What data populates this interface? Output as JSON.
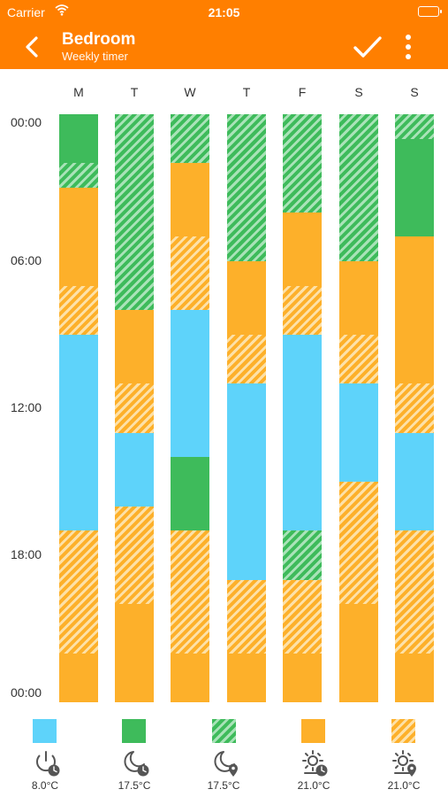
{
  "status_bar": {
    "carrier": "Carrier",
    "time": "21:05"
  },
  "header": {
    "title": "Bedroom",
    "subtitle": "Weekly timer"
  },
  "days": [
    "M",
    "T",
    "W",
    "T",
    "F",
    "S",
    "S"
  ],
  "time_labels": [
    "00:00",
    "06:00",
    "12:00",
    "18:00",
    "00:00"
  ],
  "schedule_hours": [
    [
      [
        "green",
        0,
        2
      ],
      [
        "green-h",
        2,
        3
      ],
      [
        "orange",
        3,
        7
      ],
      [
        "orange-h",
        7,
        9
      ],
      [
        "blue",
        9,
        17
      ],
      [
        "orange-h",
        17,
        22
      ],
      [
        "orange",
        22,
        24
      ]
    ],
    [
      [
        "green-h",
        0,
        8
      ],
      [
        "orange",
        8,
        11
      ],
      [
        "orange-h",
        11,
        13
      ],
      [
        "blue",
        13,
        16
      ],
      [
        "orange-h",
        16,
        20
      ],
      [
        "orange",
        20,
        24
      ]
    ],
    [
      [
        "green-h",
        0,
        2
      ],
      [
        "orange",
        2,
        5
      ],
      [
        "orange-h",
        5,
        8
      ],
      [
        "blue",
        8,
        14
      ],
      [
        "green",
        14,
        17
      ],
      [
        "orange-h",
        17,
        22
      ],
      [
        "orange",
        22,
        24
      ]
    ],
    [
      [
        "green-h",
        0,
        6
      ],
      [
        "orange",
        6,
        9
      ],
      [
        "orange-h",
        9,
        11
      ],
      [
        "blue",
        11,
        19
      ],
      [
        "orange-h",
        19,
        22
      ],
      [
        "orange",
        22,
        24
      ]
    ],
    [
      [
        "green-h",
        0,
        4
      ],
      [
        "orange",
        4,
        7
      ],
      [
        "orange-h",
        7,
        9
      ],
      [
        "blue",
        9,
        17
      ],
      [
        "green-h",
        17,
        19
      ],
      [
        "orange-h",
        19,
        22
      ],
      [
        "orange",
        22,
        24
      ]
    ],
    [
      [
        "green-h",
        0,
        6
      ],
      [
        "orange",
        6,
        9
      ],
      [
        "orange-h",
        9,
        11
      ],
      [
        "blue",
        11,
        15
      ],
      [
        "orange-h",
        15,
        20
      ],
      [
        "orange",
        20,
        24
      ]
    ],
    [
      [
        "green-h",
        0,
        1
      ],
      [
        "green",
        1,
        5
      ],
      [
        "orange",
        5,
        11
      ],
      [
        "orange-h",
        11,
        13
      ],
      [
        "blue",
        13,
        17
      ],
      [
        "orange-h",
        17,
        22
      ],
      [
        "orange",
        22,
        24
      ]
    ]
  ],
  "legend": [
    {
      "mode": "blue",
      "icon": "power-clock-icon",
      "temp": "8.0°C"
    },
    {
      "mode": "green",
      "icon": "moon-clock-icon",
      "temp": "17.5°C"
    },
    {
      "mode": "green-h",
      "icon": "moon-pin-icon",
      "temp": "17.5°C"
    },
    {
      "mode": "orange",
      "icon": "sun-clock-icon",
      "temp": "21.0°C"
    },
    {
      "mode": "orange-h",
      "icon": "sun-pin-icon",
      "temp": "21.0°C"
    }
  ]
}
